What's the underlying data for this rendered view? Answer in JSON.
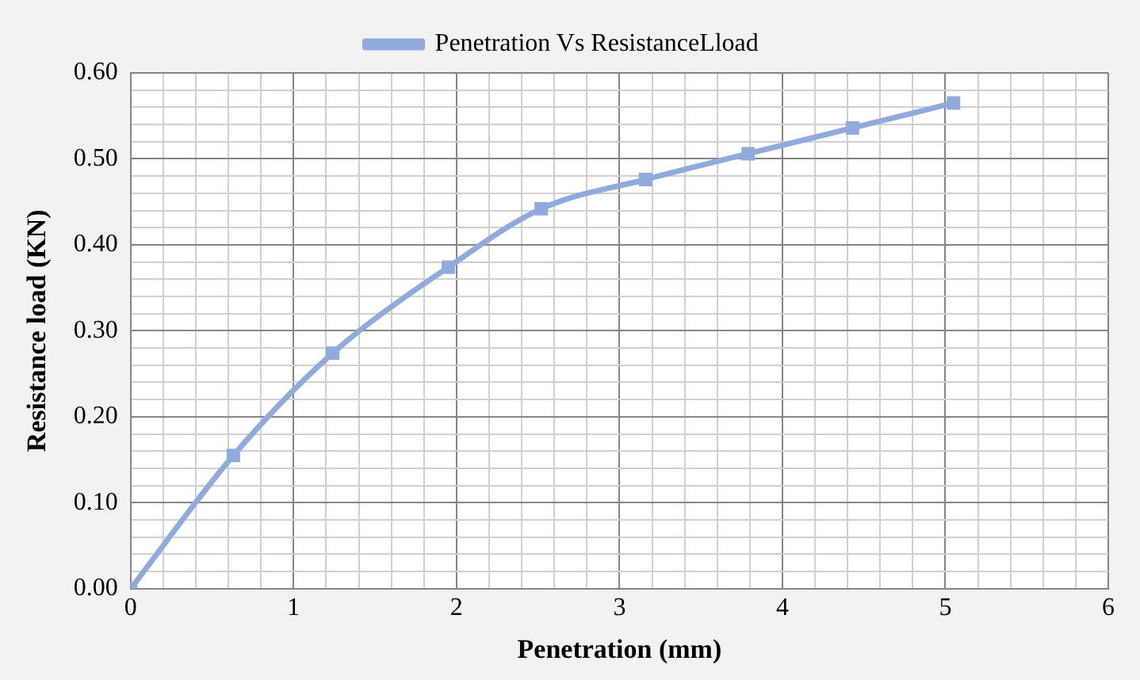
{
  "chart_data": {
    "type": "line",
    "xlabel": "Penetration (mm)",
    "ylabel": "Resistance load (KN)",
    "x": [
      0,
      0.63,
      1.24,
      1.95,
      2.52,
      3.16,
      3.79,
      4.43,
      5.05
    ],
    "series": [
      {
        "name": "Penetration Vs ResistanceLload",
        "color": "#8faadc",
        "values": [
          0,
          0.155,
          0.274,
          0.374,
          0.442,
          0.476,
          0.506,
          0.536,
          0.565
        ]
      }
    ],
    "xlim": [
      0,
      6
    ],
    "xticks": [
      0,
      {
        "value": 0.2,
        "label": null
      },
      {
        "value": 0.4,
        "label": null
      },
      {
        "value": 0.6,
        "label": null
      },
      {
        "value": 0.8,
        "label": null
      },
      1,
      {
        "value": 1.2,
        "label": null
      },
      {
        "value": 1.4,
        "label": null
      },
      {
        "value": 1.6,
        "label": null
      },
      {
        "value": 1.8,
        "label": null
      },
      2,
      {
        "value": 2.2,
        "label": null
      },
      {
        "value": 2.4,
        "label": null
      },
      {
        "value": 2.6,
        "label": null
      },
      {
        "value": 2.8,
        "label": null
      },
      3,
      {
        "value": 3.2,
        "label": null
      },
      {
        "value": 3.4,
        "label": null
      },
      {
        "value": 3.6,
        "label": null
      },
      {
        "value": 3.8,
        "label": null
      },
      4,
      {
        "value": 4.2,
        "label": null
      },
      {
        "value": 4.4,
        "label": null
      },
      {
        "value": 4.6,
        "label": null
      },
      {
        "value": 4.8,
        "label": null
      },
      5,
      {
        "value": 5.2,
        "label": null
      },
      {
        "value": 5.4,
        "label": null
      },
      {
        "value": 5.6,
        "label": null
      },
      {
        "value": 5.8,
        "label": null
      },
      6
    ],
    "ylim": [
      0,
      0.6
    ],
    "yticks": [
      {
        "value": 0,
        "label": "0.00"
      },
      {
        "value": 0.02,
        "label": null
      },
      {
        "value": 0.04,
        "label": null
      },
      {
        "value": 0.06,
        "label": null
      },
      {
        "value": 0.08,
        "label": null
      },
      {
        "value": 0.1,
        "label": "0.10"
      },
      {
        "value": 0.12,
        "label": null
      },
      {
        "value": 0.14,
        "label": null
      },
      {
        "value": 0.16,
        "label": null
      },
      {
        "value": 0.18,
        "label": null
      },
      {
        "value": 0.2,
        "label": "0.20"
      },
      {
        "value": 0.22,
        "label": null
      },
      {
        "value": 0.24,
        "label": null
      },
      {
        "value": 0.26,
        "label": null
      },
      {
        "value": 0.28,
        "label": null
      },
      {
        "value": 0.3,
        "label": "0.30"
      },
      {
        "value": 0.32,
        "label": null
      },
      {
        "value": 0.34,
        "label": null
      },
      {
        "value": 0.36,
        "label": null
      },
      {
        "value": 0.38,
        "label": null
      },
      {
        "value": 0.4,
        "label": "0.40"
      },
      {
        "value": 0.42,
        "label": null
      },
      {
        "value": 0.44,
        "label": null
      },
      {
        "value": 0.46,
        "label": null
      },
      {
        "value": 0.48,
        "label": null
      },
      {
        "value": 0.5,
        "label": "0.50"
      },
      {
        "value": 0.52,
        "label": null
      },
      {
        "value": 0.54,
        "label": null
      },
      {
        "value": 0.56,
        "label": null
      },
      {
        "value": 0.58,
        "label": null
      },
      {
        "value": 0.6,
        "label": "0.60"
      }
    ],
    "grid": true,
    "legend": "top",
    "marker": "square",
    "line_style": "solid"
  }
}
